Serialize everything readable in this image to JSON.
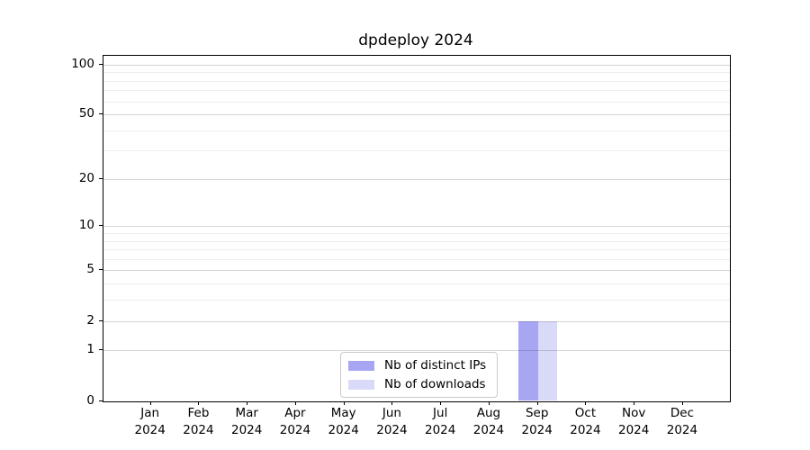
{
  "chart_data": {
    "type": "bar",
    "title": "dpdeploy 2024",
    "categories": [
      {
        "month": "Jan",
        "year": "2024"
      },
      {
        "month": "Feb",
        "year": "2024"
      },
      {
        "month": "Mar",
        "year": "2024"
      },
      {
        "month": "Apr",
        "year": "2024"
      },
      {
        "month": "May",
        "year": "2024"
      },
      {
        "month": "Jun",
        "year": "2024"
      },
      {
        "month": "Jul",
        "year": "2024"
      },
      {
        "month": "Aug",
        "year": "2024"
      },
      {
        "month": "Sep",
        "year": "2024"
      },
      {
        "month": "Oct",
        "year": "2024"
      },
      {
        "month": "Nov",
        "year": "2024"
      },
      {
        "month": "Dec",
        "year": "2024"
      }
    ],
    "series": [
      {
        "name": "Nb of distinct IPs",
        "color": "#a8a6f2",
        "values": [
          0,
          0,
          0,
          0,
          0,
          0,
          0,
          0,
          2,
          0,
          0,
          0
        ]
      },
      {
        "name": "Nb of downloads",
        "color": "#d9d9f8",
        "values": [
          0,
          0,
          0,
          0,
          0,
          0,
          0,
          0,
          2,
          0,
          0,
          0
        ]
      }
    ],
    "y_axis": {
      "scale": "log1p",
      "ticks": [
        0,
        1,
        2,
        5,
        10,
        20,
        50,
        100
      ],
      "minor_gridlines": [
        3,
        4,
        6,
        7,
        8,
        9,
        30,
        40,
        60,
        70,
        80,
        90
      ],
      "ylim": [
        0,
        113
      ]
    },
    "xlabel": "",
    "ylabel": "",
    "grid": true,
    "legend_position": "lower center"
  }
}
